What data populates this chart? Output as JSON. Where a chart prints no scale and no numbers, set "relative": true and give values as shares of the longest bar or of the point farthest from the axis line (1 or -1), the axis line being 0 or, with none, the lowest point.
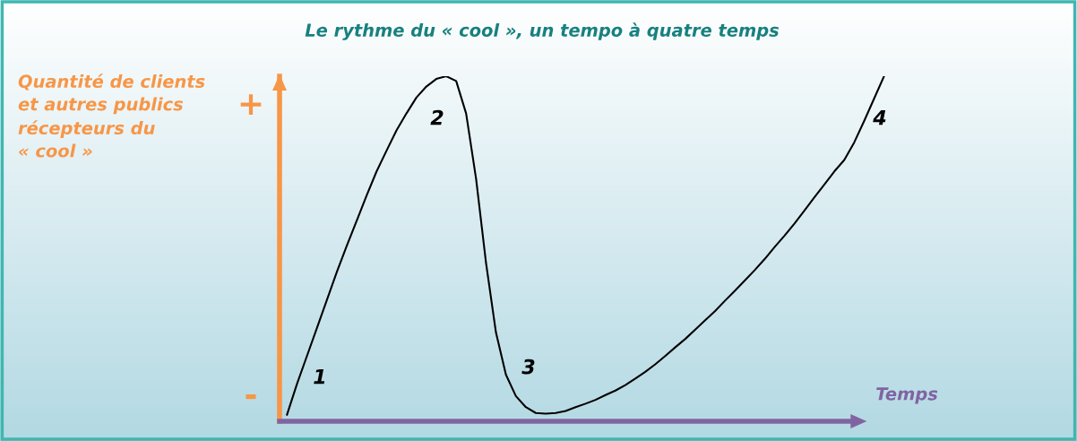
{
  "chart_data": {
    "type": "line",
    "title": "Le rythme du « cool », un tempo à quatre temps",
    "ylabel": "Quantité de clients\net autres publics\nrécepteurs du\n« cool »",
    "xlabel": "Temps",
    "relative": true,
    "categories": [
      null,
      null,
      null,
      null,
      null,
      null,
      null,
      null,
      null,
      null,
      null,
      null,
      null,
      null,
      null,
      null,
      null,
      null,
      null,
      null,
      null,
      null,
      null,
      null,
      null,
      null,
      null,
      null,
      null,
      null,
      null,
      null,
      null,
      null,
      null,
      null,
      null,
      null,
      null,
      null,
      null,
      null,
      null,
      null,
      null,
      null,
      null,
      null,
      null,
      null,
      null,
      null,
      null,
      null,
      null,
      null,
      null,
      null,
      null,
      null,
      null
    ],
    "series": [
      {
        "color": "#000000",
        "values": [
          0.019,
          0.108,
          0.189,
          0.27,
          0.351,
          0.432,
          0.508,
          0.581,
          0.654,
          0.724,
          0.784,
          0.843,
          0.892,
          0.938,
          0.97,
          0.992,
          1.0,
          0.986,
          0.892,
          0.703,
          0.459,
          0.257,
          0.135,
          0.073,
          0.041,
          0.024,
          0.022,
          0.024,
          0.03,
          0.041,
          0.051,
          0.062,
          0.076,
          0.089,
          0.105,
          0.124,
          0.143,
          0.165,
          0.189,
          0.214,
          0.238,
          0.265,
          0.292,
          0.319,
          0.349,
          0.378,
          0.408,
          0.438,
          0.47,
          0.505,
          0.538,
          0.573,
          0.611,
          0.649,
          0.686,
          0.724,
          0.757,
          0.808,
          0.87,
          0.935,
          1.0
        ]
      }
    ],
    "annotations": [
      "+",
      "-",
      "1",
      "2",
      "3",
      "4"
    ],
    "marker": "none",
    "line_style": "solid"
  }
}
